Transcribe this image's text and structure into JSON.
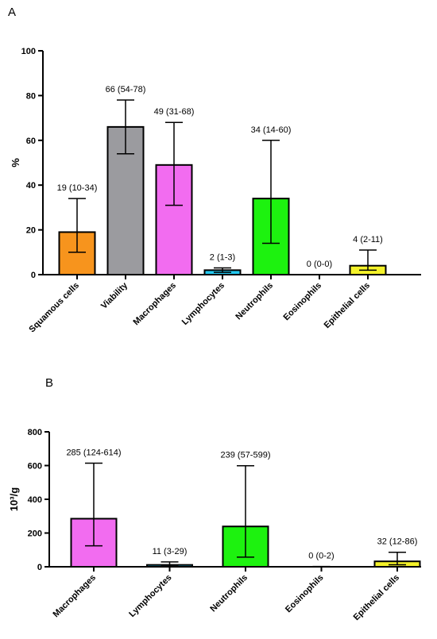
{
  "chart_data": [
    {
      "type": "bar",
      "panel_label": "A",
      "ylabel": "%",
      "ylim": [
        0,
        100
      ],
      "yticks": [
        "0",
        "20",
        "40",
        "60",
        "80",
        "100"
      ],
      "categories": [
        "Squamous cells",
        "Viability",
        "Macrophages",
        "Lymphocytes",
        "Neutrophils",
        "Eosinophils",
        "Epithelial cells"
      ],
      "values": [
        19,
        66,
        49,
        2,
        34,
        0,
        4
      ],
      "error_low": [
        10,
        54,
        31,
        1,
        14,
        0,
        2
      ],
      "error_high": [
        34,
        78,
        68,
        3,
        60,
        0,
        11
      ],
      "labels": [
        "19 (10-34)",
        "66 (54-78)",
        "49 (31-68)",
        "2 (1-3)",
        "34 (14-60)",
        "0 (0-0)",
        "4 (2-11)"
      ],
      "colors": [
        "#f7941d",
        "#9b9b9f",
        "#f26cf0",
        "#23c8f0",
        "#1df20f",
        "#ffffff",
        "#f4f22a"
      ],
      "grid": false
    },
    {
      "type": "bar",
      "panel_label": "B",
      "ylabel": "10³/g",
      "ylim": [
        0,
        800
      ],
      "yticks": [
        "0",
        "200",
        "400",
        "600",
        "800"
      ],
      "categories": [
        "Macrophages",
        "Lymphocytes",
        "Neutrophils",
        "Eosinophils",
        "Epithelial cells"
      ],
      "values": [
        285,
        11,
        239,
        0,
        32
      ],
      "error_low": [
        124,
        3,
        57,
        0,
        12
      ],
      "error_high": [
        614,
        29,
        599,
        2,
        86
      ],
      "labels": [
        "285 (124-614)",
        "11 (3-29)",
        "239 (57-599)",
        "0 (0-2)",
        "32 (12-86)"
      ],
      "colors": [
        "#f26cf0",
        "#23c8f0",
        "#1df20f",
        "#ffffff",
        "#f4f22a"
      ],
      "grid": false
    }
  ]
}
